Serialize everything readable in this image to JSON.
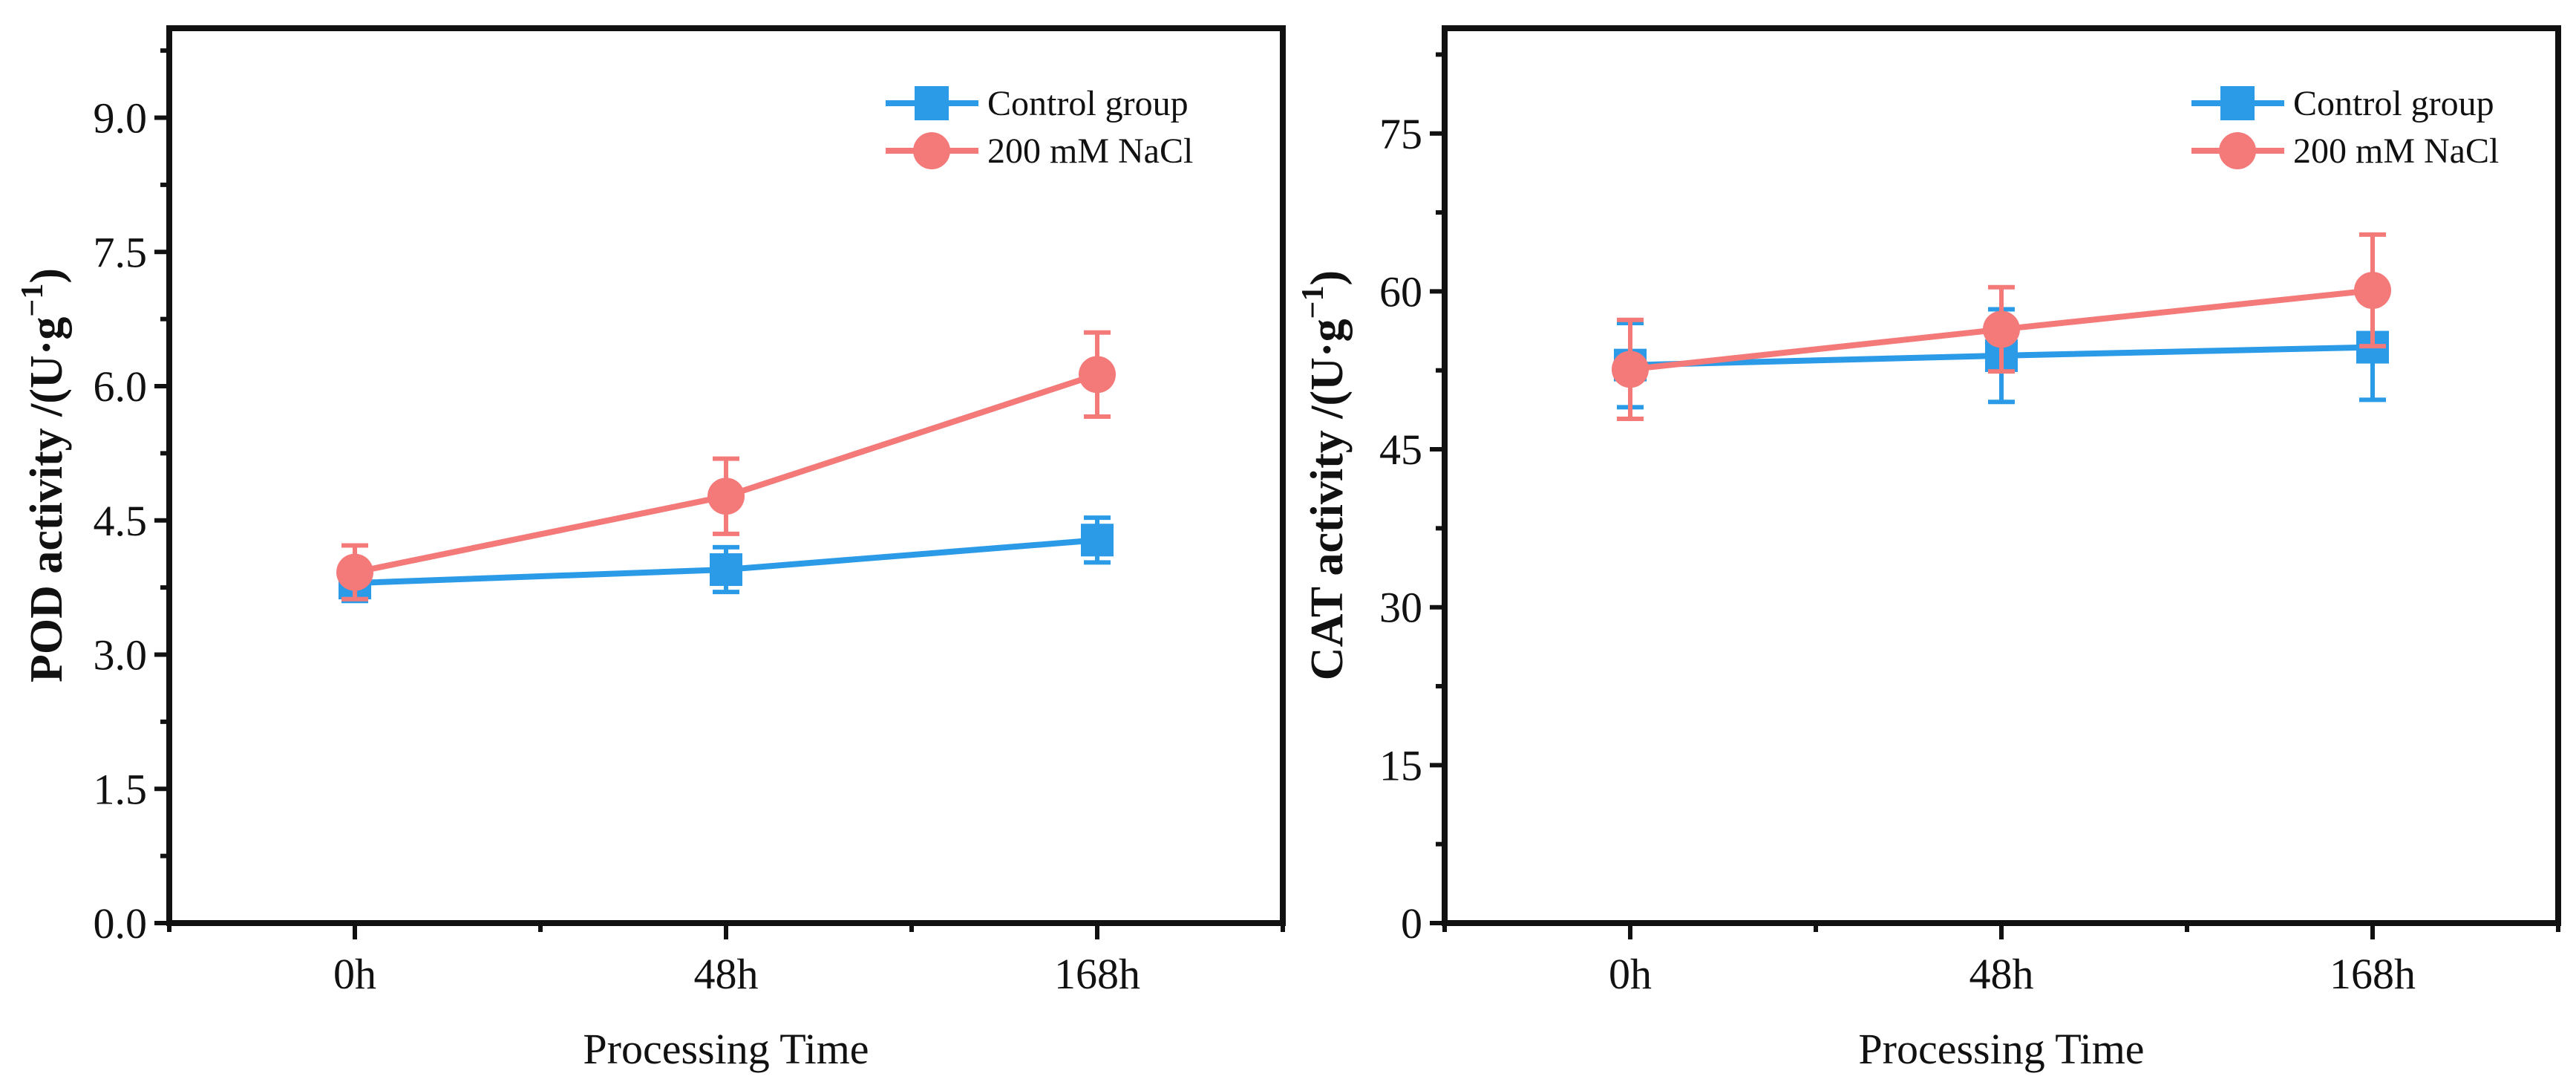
{
  "colors": {
    "control": "#2b9be8",
    "nacl": "#f47a7a",
    "axis": "#111111"
  },
  "chart_data": [
    {
      "type": "line",
      "categories": [
        "0h",
        "48h",
        "168h"
      ],
      "xlabel": "Processing Time",
      "ylabel": {
        "main": "POD activity /(U·g",
        "sup": "−1",
        "close": ")"
      },
      "ylim": [
        0,
        10
      ],
      "yticks": [
        "0.0",
        "1.5",
        "3.0",
        "4.5",
        "6.0",
        "7.5",
        "9.0"
      ],
      "yminor_step": 0.75,
      "legend": "top-right",
      "series": [
        {
          "name": "Control group",
          "marker": "square",
          "color": "#2b9be8",
          "values": [
            3.8,
            3.95,
            4.28
          ],
          "errors": [
            0.2,
            0.25,
            0.25
          ]
        },
        {
          "name": "200 mM NaCl",
          "marker": "circle",
          "color": "#f47a7a",
          "values": [
            3.92,
            4.77,
            6.13
          ],
          "errors": [
            0.3,
            0.42,
            0.47
          ]
        }
      ]
    },
    {
      "type": "line",
      "categories": [
        "0h",
        "48h",
        "168h"
      ],
      "xlabel": "Processing Time",
      "ylabel": {
        "main": "CAT activity /(U·g",
        "sup": "−1",
        "close": ")"
      },
      "ylim": [
        0,
        85
      ],
      "yticks": [
        "0",
        "15",
        "30",
        "45",
        "60",
        "75"
      ],
      "yminor_step": 7.5,
      "legend": "top-right",
      "series": [
        {
          "name": "Control group",
          "marker": "square",
          "color": "#2b9be8",
          "values": [
            53.0,
            53.9,
            54.7
          ],
          "errors": [
            4.0,
            4.4,
            5.0
          ]
        },
        {
          "name": "200 mM NaCl",
          "marker": "circle",
          "color": "#f47a7a",
          "values": [
            52.6,
            56.4,
            60.1
          ],
          "errors": [
            4.7,
            4.0,
            5.3
          ]
        }
      ]
    }
  ]
}
